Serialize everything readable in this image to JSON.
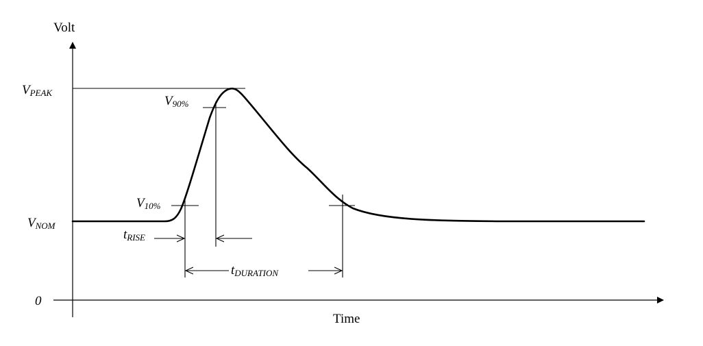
{
  "diagram": {
    "y_axis_label": "Volt",
    "x_axis_label": "Time",
    "origin_label": "0",
    "v_peak": {
      "main": "V",
      "sub": "PEAK"
    },
    "v_nom": {
      "main": "V",
      "sub": "NOM"
    },
    "v_90": {
      "main": "V",
      "sub": "90%"
    },
    "v_10": {
      "main": "V",
      "sub": "10%"
    },
    "t_rise": {
      "main": "t",
      "sub": "RISE"
    },
    "t_duration": {
      "main": "t",
      "sub": "DURATION"
    }
  }
}
